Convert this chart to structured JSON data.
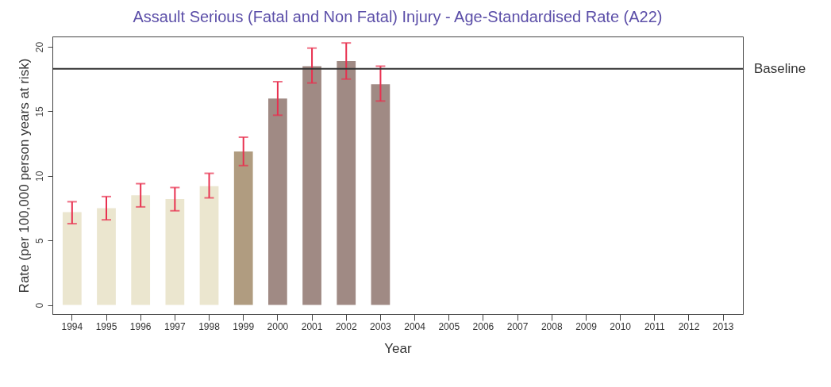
{
  "chart_data": {
    "type": "bar",
    "title": "Assault Serious (Fatal and Non Fatal) Injury - Age-Standardised Rate (A22)",
    "xlabel": "Year",
    "ylabel": "Rate (per 100,000 person years at risk)",
    "categories": [
      "1994",
      "1995",
      "1996",
      "1997",
      "1998",
      "1999",
      "2000",
      "2001",
      "2002",
      "2003",
      "2004",
      "2005",
      "2006",
      "2007",
      "2008",
      "2009",
      "2010",
      "2011",
      "2012",
      "2013"
    ],
    "values": [
      7.2,
      7.5,
      8.5,
      8.2,
      9.2,
      11.9,
      16.0,
      18.5,
      18.9,
      17.1,
      null,
      null,
      null,
      null,
      null,
      null,
      null,
      null,
      null,
      null
    ],
    "colors": [
      "#ebe6cf",
      "#ebe6cf",
      "#ebe6cf",
      "#ebe6cf",
      "#ebe6cf",
      "#b09c80",
      "#a08a84",
      "#a08a84",
      "#a08a84",
      "#a08a84",
      "#a08a84",
      "#a08a84",
      "#a08a84",
      "#a08a84",
      "#a08a84",
      "#a08a84",
      "#a08a84",
      "#a08a84",
      "#a08a84",
      "#a08a84"
    ],
    "errors": [
      [
        6.3,
        8.0
      ],
      [
        6.6,
        8.4
      ],
      [
        7.6,
        9.4
      ],
      [
        7.3,
        9.1
      ],
      [
        8.3,
        10.2
      ],
      [
        10.8,
        13.0
      ],
      [
        14.7,
        17.3
      ],
      [
        17.2,
        19.9
      ],
      [
        17.5,
        20.3
      ],
      [
        15.8,
        18.5
      ],
      null,
      null,
      null,
      null,
      null,
      null,
      null,
      null,
      null,
      null
    ],
    "ylim": [
      -0.7,
      20.8
    ],
    "yticks": [
      0,
      5,
      10,
      15,
      20
    ],
    "ref_lines": [
      {
        "axis": "y",
        "value": 18.3,
        "label": "Baseline",
        "color": "#333333"
      }
    ]
  }
}
